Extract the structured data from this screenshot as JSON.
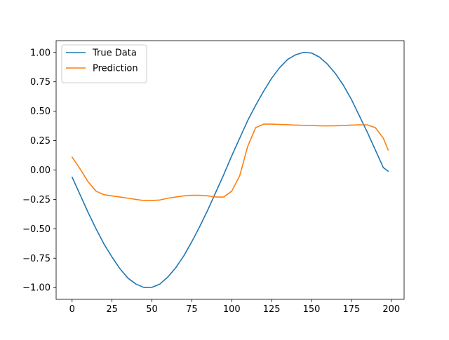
{
  "chart_data": {
    "type": "line",
    "x": [
      0,
      5,
      10,
      15,
      20,
      25,
      30,
      35,
      40,
      45,
      50,
      55,
      60,
      65,
      70,
      75,
      80,
      85,
      90,
      95,
      100,
      105,
      110,
      115,
      120,
      125,
      130,
      135,
      140,
      145,
      150,
      155,
      160,
      165,
      170,
      175,
      180,
      185,
      190,
      195,
      198
    ],
    "series": [
      {
        "name": "True Data",
        "color": "#1f77b4",
        "values": [
          -0.06,
          -0.21,
          -0.36,
          -0.5,
          -0.63,
          -0.74,
          -0.84,
          -0.92,
          -0.97,
          -0.999,
          -0.998,
          -0.97,
          -0.91,
          -0.83,
          -0.73,
          -0.61,
          -0.48,
          -0.34,
          -0.19,
          -0.04,
          0.12,
          0.27,
          0.42,
          0.55,
          0.67,
          0.78,
          0.87,
          0.94,
          0.98,
          1.0,
          0.995,
          0.96,
          0.9,
          0.82,
          0.72,
          0.6,
          0.46,
          0.32,
          0.17,
          0.02,
          -0.01
        ]
      },
      {
        "name": "Prediction",
        "color": "#ff7f0e",
        "values": [
          0.11,
          0.01,
          -0.1,
          -0.18,
          -0.21,
          -0.22,
          -0.23,
          -0.24,
          -0.25,
          -0.26,
          -0.26,
          -0.255,
          -0.24,
          -0.23,
          -0.22,
          -0.215,
          -0.215,
          -0.22,
          -0.23,
          -0.23,
          -0.18,
          -0.05,
          0.2,
          0.36,
          0.39,
          0.39,
          0.387,
          0.385,
          0.382,
          0.38,
          0.378,
          0.376,
          0.375,
          0.376,
          0.378,
          0.382,
          0.384,
          0.384,
          0.36,
          0.27,
          0.17
        ]
      }
    ],
    "xlim": [
      -10,
      208
    ],
    "ylim": [
      -1.1,
      1.1
    ],
    "xticks": [
      "0",
      "25",
      "50",
      "75",
      "100",
      "125",
      "150",
      "175",
      "200"
    ],
    "yticks": [
      "−1.00",
      "−0.75",
      "−0.50",
      "−0.25",
      "0.00",
      "0.25",
      "0.50",
      "0.75",
      "1.00"
    ],
    "title": "",
    "xlabel": "",
    "ylabel": "",
    "grid": false,
    "legend_position": "upper-left"
  }
}
